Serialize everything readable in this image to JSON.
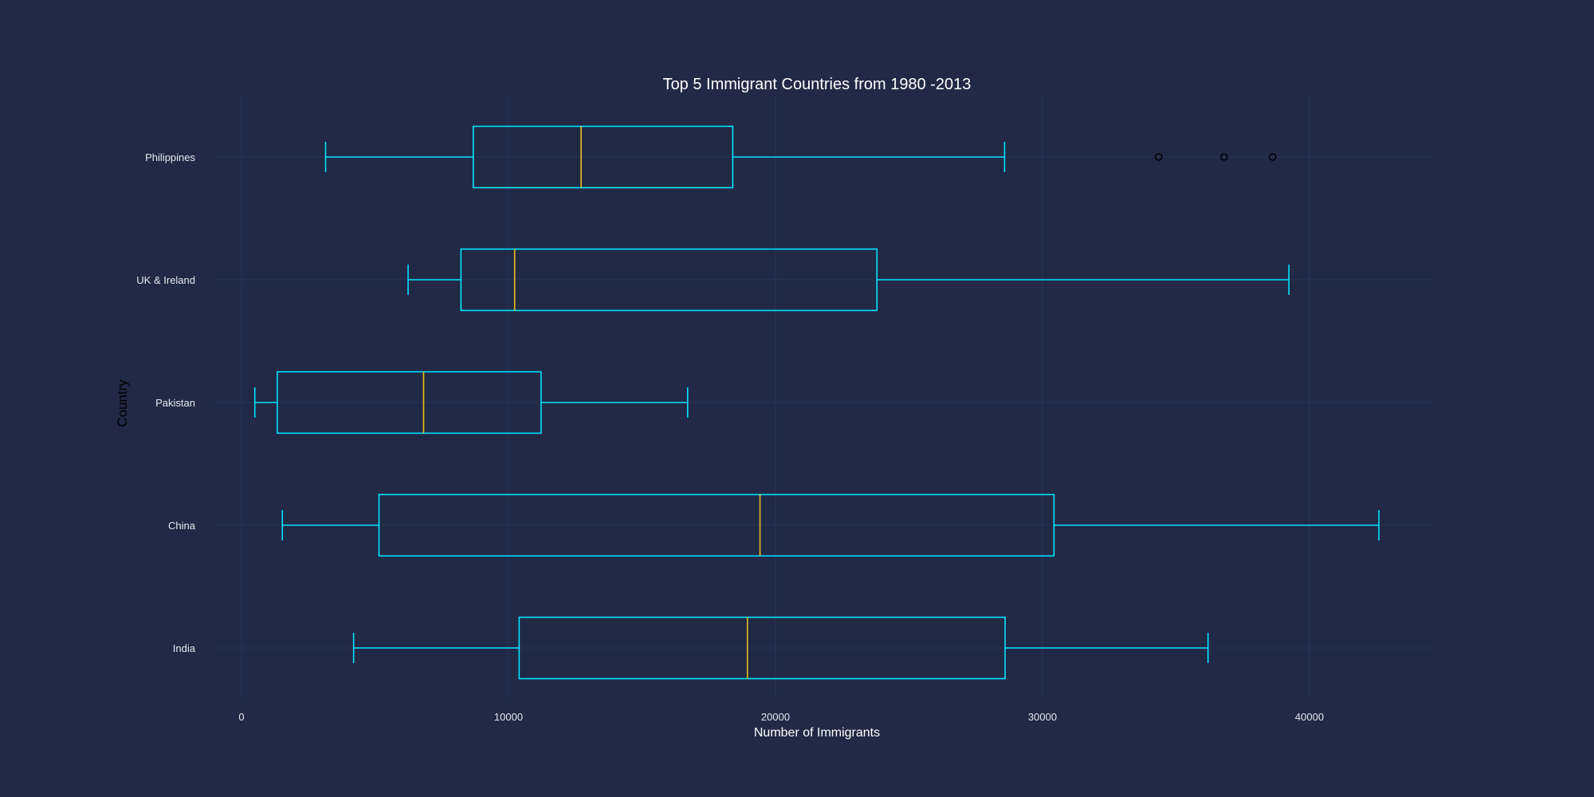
{
  "chart_data": {
    "type": "boxplot",
    "orientation": "horizontal",
    "title": "Top 5 Immigrant Countries from 1980 -2013",
    "xlabel": "Number of Immigrants",
    "ylabel": "Country",
    "xlim": [
      -1350,
      44800
    ],
    "xticks": [
      0,
      10000,
      20000,
      30000,
      40000
    ],
    "grid": true,
    "colors": {
      "background": "#212946",
      "box": "#00e5ff",
      "median": "#e8c21a",
      "grid": "#2a3459",
      "outlier": "#000000"
    },
    "categories": [
      "India",
      "China",
      "Pakistan",
      "UK & Ireland",
      "Philippines"
    ],
    "boxes": [
      {
        "category": "India",
        "whisker_low": 4200,
        "q1": 10400,
        "median": 18950,
        "q3": 28600,
        "whisker_high": 36200,
        "outliers": []
      },
      {
        "category": "China",
        "whisker_low": 1530,
        "q1": 5150,
        "median": 19420,
        "q3": 30430,
        "whisker_high": 42600,
        "outliers": []
      },
      {
        "category": "Pakistan",
        "whisker_low": 500,
        "q1": 1340,
        "median": 6820,
        "q3": 11220,
        "whisker_high": 16710,
        "outliers": []
      },
      {
        "category": "UK & Ireland",
        "whisker_low": 6240,
        "q1": 8220,
        "median": 10230,
        "q3": 23800,
        "whisker_high": 39230,
        "outliers": []
      },
      {
        "category": "Philippines",
        "whisker_low": 3150,
        "q1": 8680,
        "median": 12720,
        "q3": 18400,
        "whisker_high": 28580,
        "outliers": [
          34350,
          36800,
          38620
        ]
      }
    ]
  }
}
